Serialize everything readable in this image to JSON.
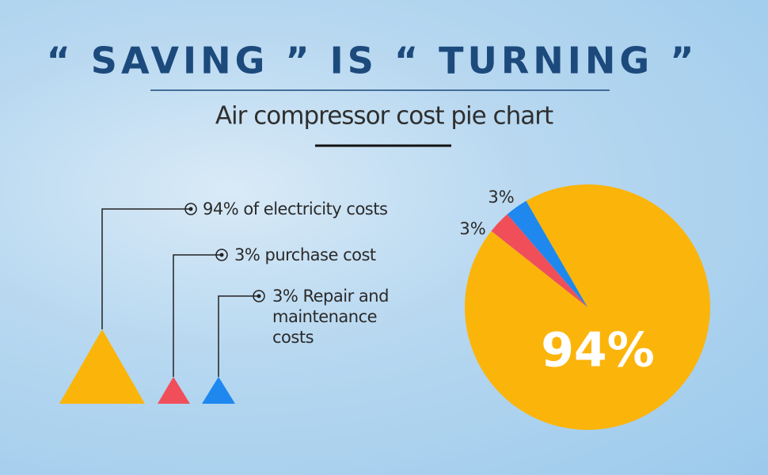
{
  "chart_data": {
    "type": "pie",
    "title": "“ SAVING ” IS “ TURNING ”",
    "subtitle": "Air compressor cost pie chart",
    "categories": [
      "94% of electricity costs",
      "3% purchase cost",
      "3% Repair and maintenance costs"
    ],
    "values": [
      94,
      3,
      3
    ],
    "value_labels": [
      "94%",
      "3%",
      "3%"
    ],
    "colors": [
      "#fbb40a",
      "#f04f5a",
      "#1e88ef"
    ]
  }
}
